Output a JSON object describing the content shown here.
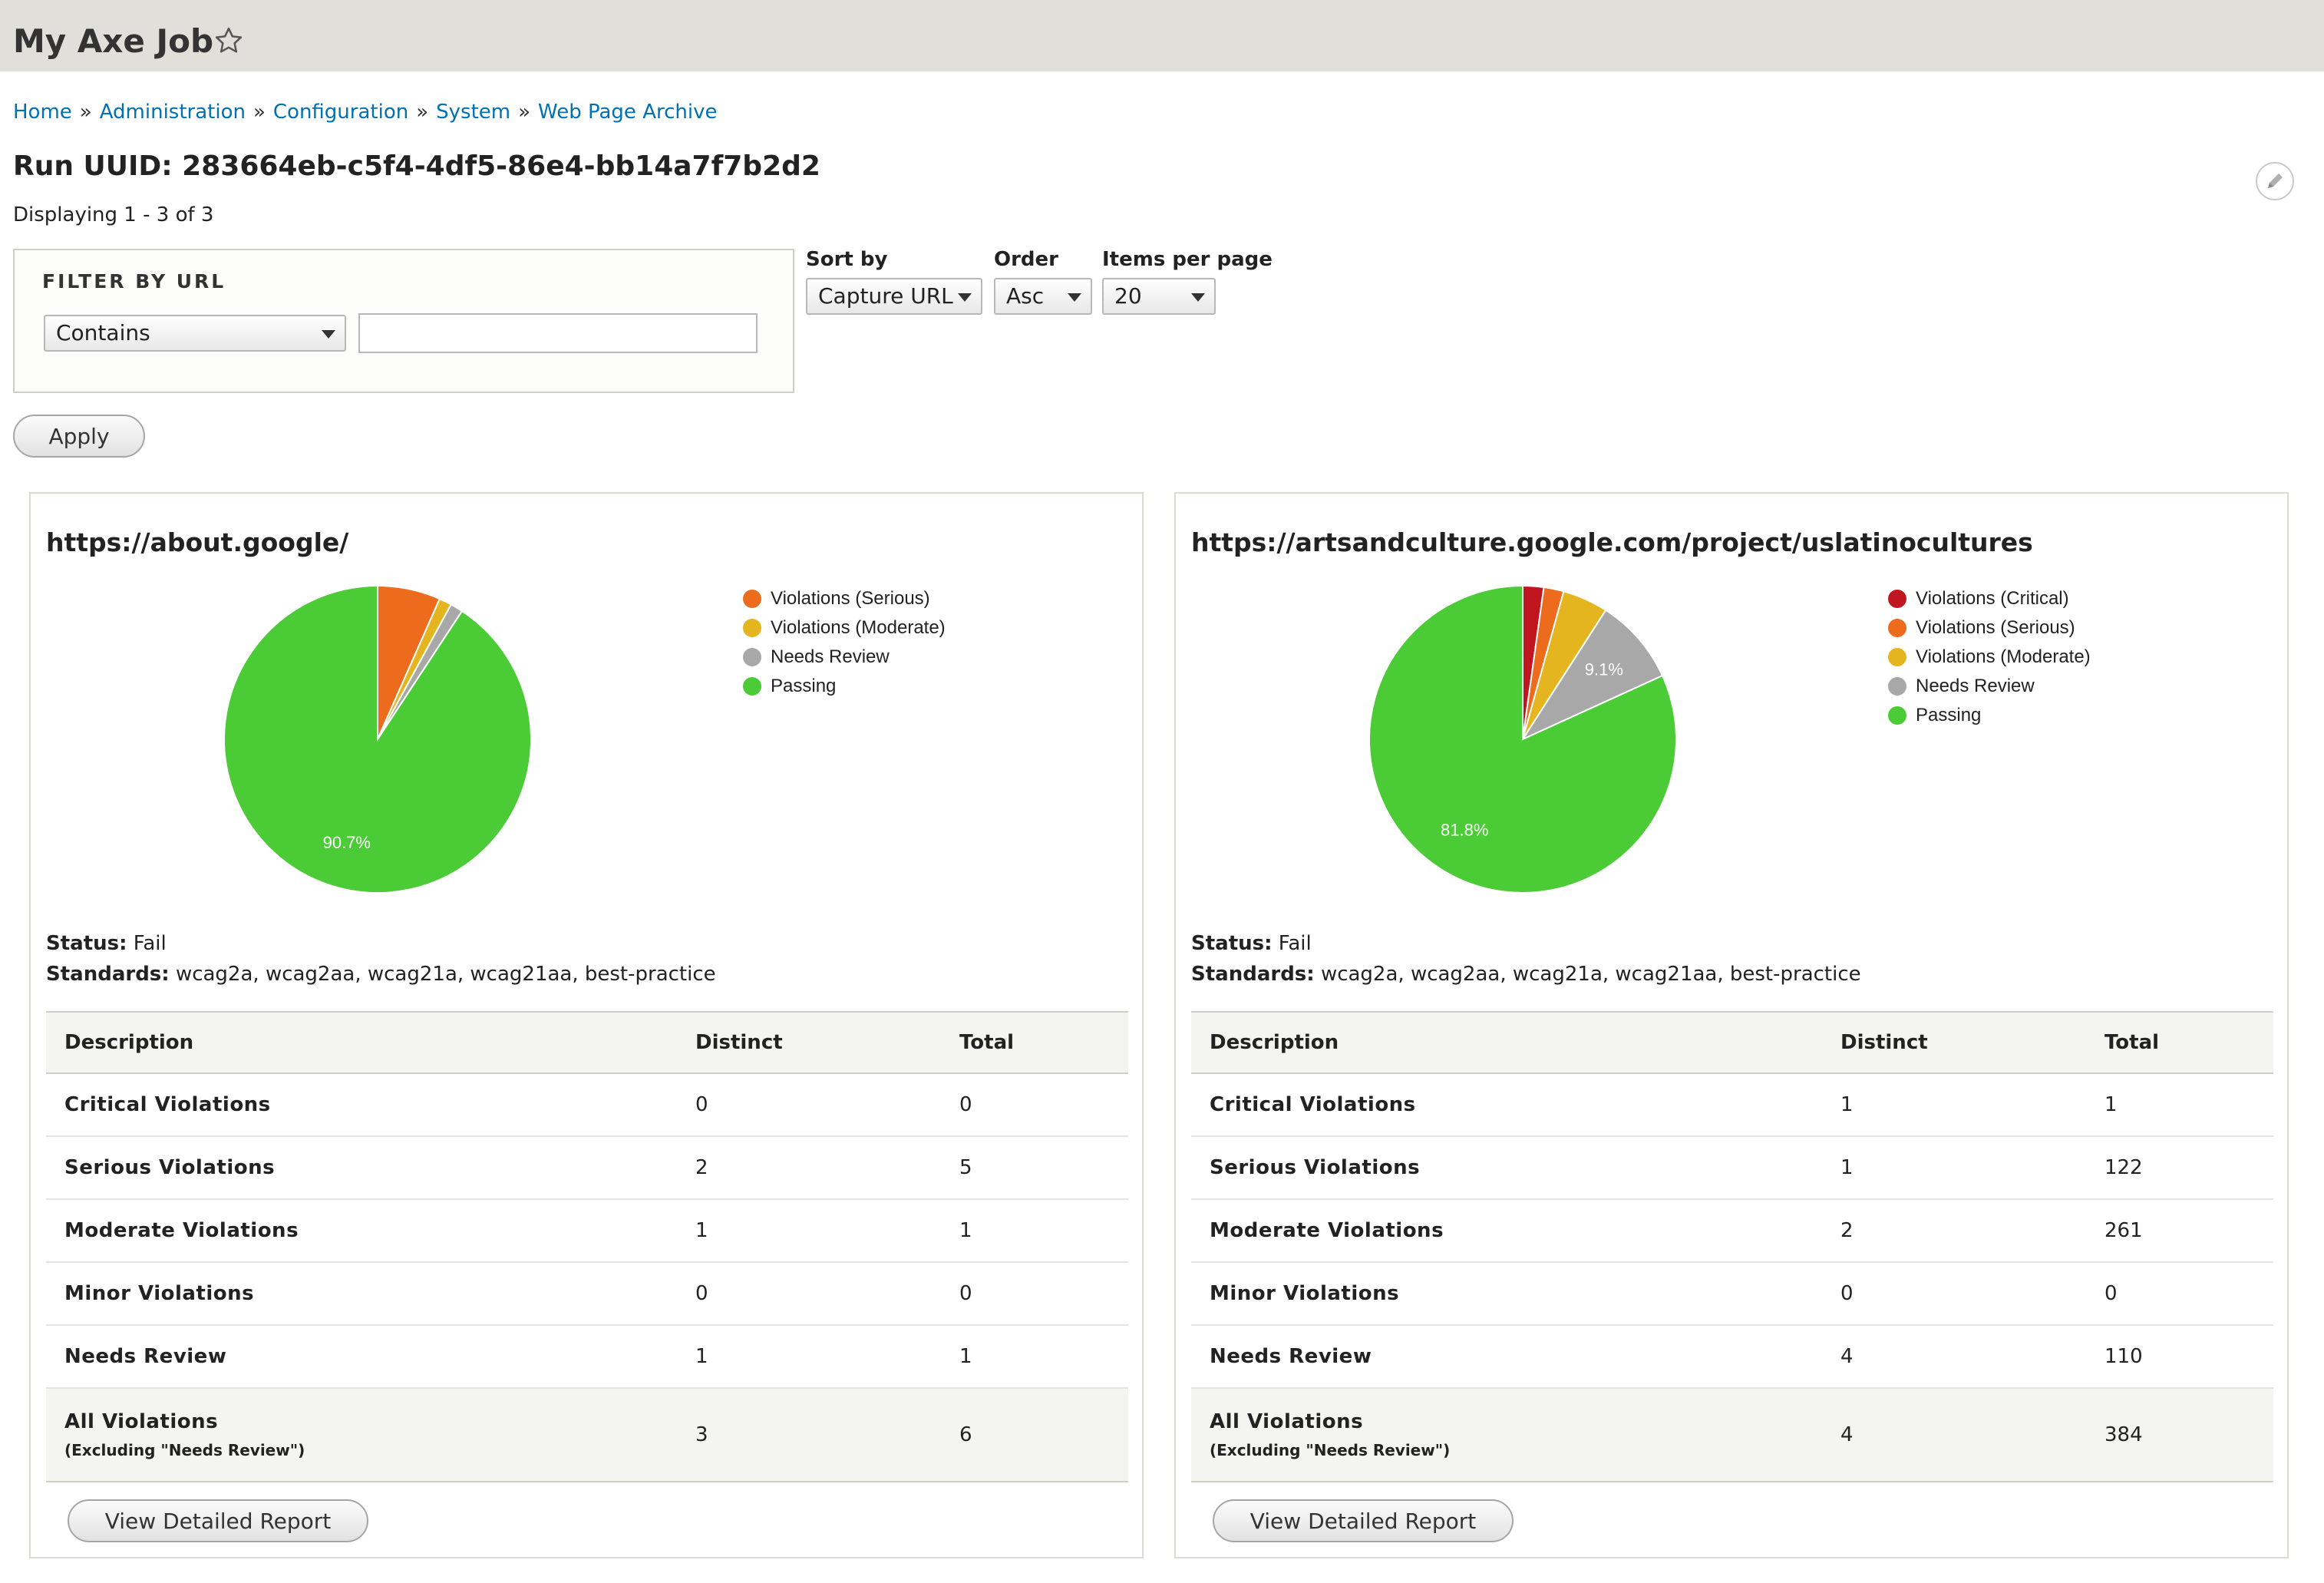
{
  "header": {
    "title": "My Axe Job"
  },
  "breadcrumb": [
    "Home",
    "Administration",
    "Configuration",
    "System",
    "Web Page Archive"
  ],
  "run": {
    "title": "Run UUID: 283664eb-c5f4-4df5-86e4-bb14a7f7b2d2",
    "displaying": "Displaying 1 - 3 of 3"
  },
  "filter": {
    "legend": "FILTER BY URL",
    "operator": "Contains",
    "value": "",
    "apply_label": "Apply"
  },
  "sort": {
    "sort_label": "Sort by",
    "sort_value": "Capture URL",
    "order_label": "Order",
    "order_value": "Asc",
    "items_label": "Items per page",
    "items_value": "20"
  },
  "labels": {
    "status": "Status:",
    "standards": "Standards:",
    "col_description": "Description",
    "col_distinct": "Distinct",
    "col_total": "Total",
    "all_violations": "All Violations",
    "excluding": "(Excluding \"Needs Review\")",
    "report_button": "View Detailed Report"
  },
  "colors": {
    "critical": "#c0161f",
    "serious": "#ec6b1c",
    "moderate": "#e5b51f",
    "review": "#a8a8a8",
    "passing": "#4bcb36"
  },
  "results": [
    {
      "url": "https://about.google/",
      "status": "Fail",
      "standards": "wcag2a, wcag2aa, wcag21a, wcag21aa, best-practice",
      "chart_data": {
        "type": "pie",
        "legend_position": "right",
        "labels": [
          "Violations (Serious)",
          "Violations (Moderate)",
          "Needs Review",
          "Passing"
        ],
        "keys": [
          "serious",
          "moderate",
          "review",
          "passing"
        ],
        "values": [
          5,
          1,
          1,
          68.5
        ],
        "slice_labels": [
          "",
          "",
          "",
          "90.7%"
        ]
      },
      "rows": [
        {
          "desc": "Critical Violations",
          "distinct": "0",
          "total": "0"
        },
        {
          "desc": "Serious Violations",
          "distinct": "2",
          "total": "5"
        },
        {
          "desc": "Moderate Violations",
          "distinct": "1",
          "total": "1"
        },
        {
          "desc": "Minor Violations",
          "distinct": "0",
          "total": "0"
        },
        {
          "desc": "Needs Review",
          "distinct": "1",
          "total": "1"
        }
      ],
      "all_distinct": "3",
      "all_total": "6"
    },
    {
      "url": "https://artsandculture.google.com/project/uslatinocultures",
      "status": "Fail",
      "standards": "wcag2a, wcag2aa, wcag21a, wcag21aa, best-practice",
      "chart_data": {
        "type": "pie",
        "legend_position": "right",
        "labels": [
          "Violations (Critical)",
          "Violations (Serious)",
          "Violations (Moderate)",
          "Needs Review",
          "Passing"
        ],
        "keys": [
          "critical",
          "serious",
          "moderate",
          "review",
          "passing"
        ],
        "values": [
          2.2,
          2.1,
          4.8,
          9.1,
          81.8
        ],
        "slice_labels": [
          "",
          "",
          "",
          "9.1%",
          "81.8%"
        ]
      },
      "rows": [
        {
          "desc": "Critical Violations",
          "distinct": "1",
          "total": "1"
        },
        {
          "desc": "Serious Violations",
          "distinct": "1",
          "total": "122"
        },
        {
          "desc": "Moderate Violations",
          "distinct": "2",
          "total": "261"
        },
        {
          "desc": "Minor Violations",
          "distinct": "0",
          "total": "0"
        },
        {
          "desc": "Needs Review",
          "distinct": "4",
          "total": "110"
        }
      ],
      "all_distinct": "4",
      "all_total": "384"
    }
  ]
}
